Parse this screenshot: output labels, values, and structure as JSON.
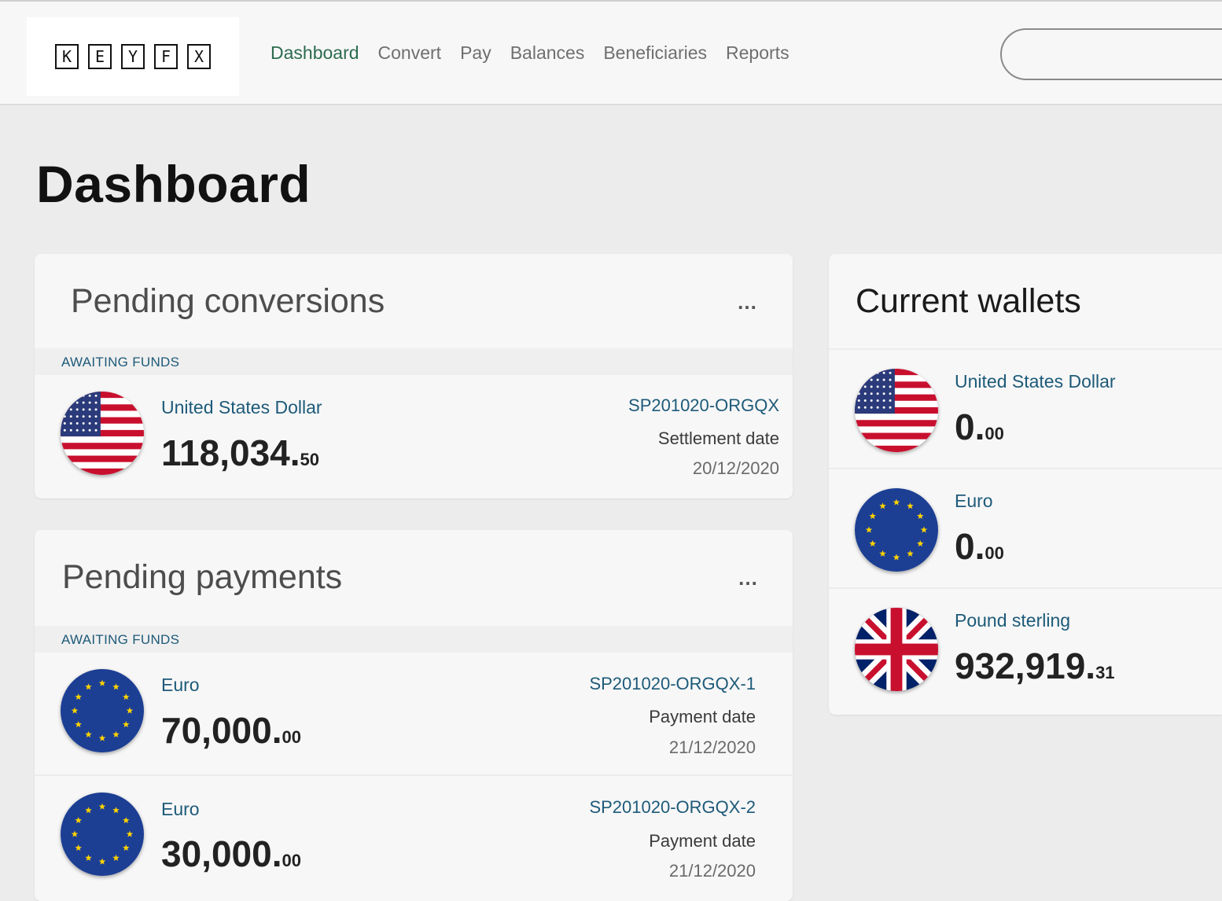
{
  "logo": {
    "letters": [
      "K",
      "E",
      "Y",
      "F",
      "X"
    ]
  },
  "nav": {
    "items": [
      "Dashboard",
      "Convert",
      "Pay",
      "Balances",
      "Beneficiaries",
      "Reports"
    ],
    "active": "Dashboard"
  },
  "page": {
    "title": "Dashboard"
  },
  "pending_conversions": {
    "title": "Pending conversions",
    "more": "…",
    "section_label": "AWAITING FUNDS",
    "items": [
      {
        "currency": "United States Dollar",
        "flag": "us-flag-icon",
        "amount_int": "118,034.",
        "amount_dec": "50",
        "reference": "SP201020-ORGQX",
        "date_label": "Settlement date",
        "date": "20/12/2020"
      }
    ]
  },
  "pending_payments": {
    "title": "Pending payments",
    "more": "…",
    "section_label": "AWAITING FUNDS",
    "items": [
      {
        "currency": "Euro",
        "flag": "eu-flag-icon",
        "amount_int": "70,000.",
        "amount_dec": "00",
        "reference": "SP201020-ORGQX-1",
        "date_label": "Payment date",
        "date": "21/12/2020"
      },
      {
        "currency": "Euro",
        "flag": "eu-flag-icon",
        "amount_int": "30,000.",
        "amount_dec": "00",
        "reference": "SP201020-ORGQX-2",
        "date_label": "Payment date",
        "date": "21/12/2020"
      }
    ]
  },
  "current_wallets": {
    "title": "Current wallets",
    "items": [
      {
        "currency": "United States Dollar",
        "flag": "us-flag-icon",
        "amount_int": "0.",
        "amount_dec": "00"
      },
      {
        "currency": "Euro",
        "flag": "eu-flag-icon",
        "amount_int": "0.",
        "amount_dec": "00"
      },
      {
        "currency": "Pound sterling",
        "flag": "uk-flag-icon",
        "amount_int": "932,919.",
        "amount_dec": "31"
      }
    ]
  },
  "colors": {
    "accent_green": "#2c6b4f",
    "link_blue": "#1d5a79",
    "page_bg": "#ececec",
    "card_bg": "#f7f7f7"
  }
}
